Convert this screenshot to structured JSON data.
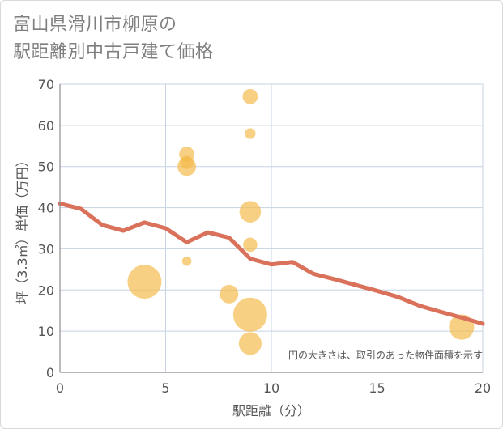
{
  "chart_data": {
    "type": "scatter",
    "title_line1": "富山県滑川市柳原の",
    "title_line2": "駅距離別中古戸建て価格",
    "xlabel": "駅距離（分）",
    "ylabel": "坪（3.3㎡）単価（万円）",
    "note": "円の大きさは、取引のあった物件面積を示す",
    "xlim": [
      0,
      20
    ],
    "ylim": [
      0,
      70
    ],
    "xticks": [
      "0",
      "5",
      "10",
      "15",
      "20"
    ],
    "yticks": [
      "0",
      "10",
      "20",
      "30",
      "40",
      "50",
      "60",
      "70"
    ],
    "grid": true,
    "colors": {
      "bubble": "#f5b94a",
      "line": "#d9715b",
      "grid": "#c5d3e3",
      "axis": "#8c8c8c"
    },
    "points": [
      {
        "x": 4,
        "y": 22,
        "size": 4.0
      },
      {
        "x": 6,
        "y": 27,
        "size": 0.3
      },
      {
        "x": 6,
        "y": 50,
        "size": 1.2
      },
      {
        "x": 6,
        "y": 51,
        "size": 0.6
      },
      {
        "x": 6,
        "y": 53,
        "size": 0.8
      },
      {
        "x": 8,
        "y": 19,
        "size": 1.2
      },
      {
        "x": 9,
        "y": 7,
        "size": 1.8
      },
      {
        "x": 9,
        "y": 14,
        "size": 4.0
      },
      {
        "x": 9,
        "y": 31,
        "size": 0.7
      },
      {
        "x": 9,
        "y": 39,
        "size": 1.6
      },
      {
        "x": 9,
        "y": 58,
        "size": 0.4
      },
      {
        "x": 9,
        "y": 67,
        "size": 0.8
      },
      {
        "x": 19,
        "y": 11,
        "size": 2.2
      }
    ],
    "trend": {
      "name": "trend",
      "x": [
        0,
        1,
        2,
        3,
        4,
        5,
        6,
        7,
        8,
        9,
        10,
        11,
        12,
        13,
        14,
        15,
        16,
        17,
        18,
        19,
        20
      ],
      "y": [
        41,
        39.7,
        35.8,
        34.4,
        36.4,
        35,
        31.6,
        34,
        32.7,
        27.6,
        26.2,
        26.8,
        23.9,
        22.6,
        21.2,
        19.8,
        18.3,
        16.2,
        14.7,
        13.3,
        11.8
      ]
    }
  }
}
